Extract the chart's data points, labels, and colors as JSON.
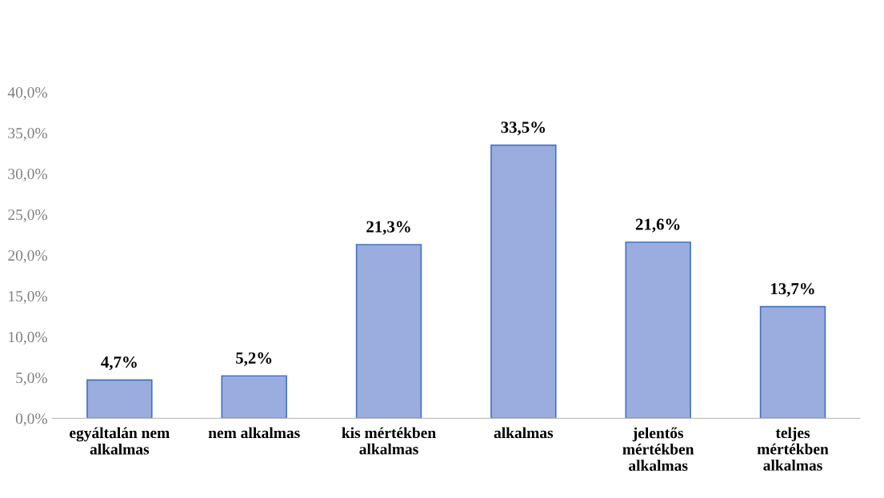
{
  "chart_data": {
    "type": "bar",
    "categories": [
      "egyáltalán nem\nalkalmas",
      "nem alkalmas",
      "kis mértékben\nalkalmas",
      "alkalmas",
      "jelentős\nmértékben\nalkalmas",
      "teljes\nmértékben\nalkalmas"
    ],
    "values": [
      4.7,
      5.2,
      21.3,
      33.5,
      21.6,
      13.7
    ],
    "value_labels": [
      "4,7%",
      "5,2%",
      "21,3%",
      "33,5%",
      "21,6%",
      "13,7%"
    ],
    "color": "#9badde",
    "ylim": [
      0,
      40
    ],
    "yticks": [
      {
        "value": 0,
        "label": "0,0%"
      },
      {
        "value": 5,
        "label": "5,0%"
      },
      {
        "value": 10,
        "label": "10,0%"
      },
      {
        "value": 15,
        "label": "15,0%"
      },
      {
        "value": 20,
        "label": "20,0%"
      },
      {
        "value": 25,
        "label": "25,0%"
      },
      {
        "value": 30,
        "label": "30,0%"
      },
      {
        "value": 35,
        "label": "35,0%"
      },
      {
        "value": 40,
        "label": "40,0%"
      }
    ],
    "grid": false,
    "legend": false
  }
}
